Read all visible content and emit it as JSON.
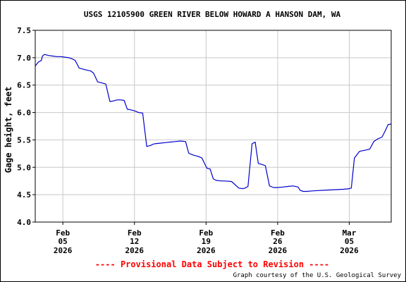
{
  "chart_data": {
    "type": "line",
    "title": "USGS 12105900 GREEN RIVER BELOW HOWARD A HANSON DAM, WA",
    "ylabel": "Gage height, feet",
    "xlabel": "",
    "ylim": [
      4.0,
      7.5
    ],
    "yticks": [
      "4.0",
      "4.5",
      "5.0",
      "5.5",
      "6.0",
      "6.5",
      "7.0",
      "7.5"
    ],
    "xlim_days": [
      2.3,
      37.1
    ],
    "x_ticks": [
      {
        "day": 5,
        "month": "Feb",
        "date": "05",
        "year": "2026"
      },
      {
        "day": 12,
        "month": "Feb",
        "date": "12",
        "year": "2026"
      },
      {
        "day": 19,
        "month": "Feb",
        "date": "19",
        "year": "2026"
      },
      {
        "day": 26,
        "month": "Feb",
        "date": "26",
        "year": "2026"
      },
      {
        "day": 33,
        "month": "Mar",
        "date": "05",
        "year": "2026"
      }
    ],
    "grid": true,
    "line_color": "#0000cc",
    "series": [
      {
        "x": [
          2.3,
          2.6,
          2.9,
          3.0,
          3.2,
          3.6,
          4.0,
          4.4,
          4.8,
          5.2,
          5.6,
          5.9,
          6.2,
          6.6,
          7.0,
          7.4,
          7.7,
          8.0,
          8.4,
          8.8,
          9.2,
          9.6,
          9.9,
          10.3,
          10.7,
          11.0,
          11.3,
          11.6,
          12.0,
          12.4,
          12.8,
          13.2,
          13.6,
          13.8,
          14.0,
          14.5,
          15.0,
          15.5,
          16.0,
          16.5,
          17.0,
          17.3,
          17.5,
          17.8,
          18.2,
          18.6,
          18.9,
          19.1,
          19.4,
          19.7,
          20.0,
          20.5,
          20.8,
          21.5,
          22.2,
          22.6,
          22.8,
          23.1,
          23.5,
          23.8,
          24.1,
          24.5,
          24.8,
          25.2,
          25.6,
          26.0,
          26.5,
          27.0,
          27.5,
          28.0,
          28.2,
          28.5,
          28.8,
          29.5,
          30.5,
          31.5,
          32.5,
          33.0,
          33.2,
          33.5,
          34.0,
          34.5,
          35.0,
          35.4,
          35.8,
          36.2,
          36.5,
          36.8,
          37.1
        ],
        "y": [
          6.85,
          6.92,
          6.95,
          7.03,
          7.06,
          7.04,
          7.03,
          7.02,
          7.02,
          7.01,
          7.0,
          6.98,
          6.95,
          6.81,
          6.79,
          6.77,
          6.76,
          6.72,
          6.56,
          6.54,
          6.52,
          6.2,
          6.21,
          6.23,
          6.23,
          6.22,
          6.06,
          6.05,
          6.03,
          6.0,
          5.99,
          5.38,
          5.4,
          5.42,
          5.43,
          5.44,
          5.45,
          5.46,
          5.47,
          5.48,
          5.47,
          5.26,
          5.24,
          5.22,
          5.2,
          5.17,
          5.05,
          4.98,
          4.97,
          4.79,
          4.76,
          4.75,
          4.75,
          4.74,
          4.62,
          4.61,
          4.62,
          4.65,
          5.43,
          5.46,
          5.07,
          5.05,
          5.03,
          4.66,
          4.63,
          4.63,
          4.64,
          4.65,
          4.66,
          4.64,
          4.58,
          4.56,
          4.56,
          4.57,
          4.58,
          4.59,
          4.6,
          4.61,
          4.62,
          5.17,
          5.29,
          5.31,
          5.33,
          5.47,
          5.52,
          5.55,
          5.66,
          5.78,
          5.79
        ]
      }
    ]
  },
  "footer": {
    "provisional": "---- Provisional Data Subject to Revision ----",
    "credit": "Graph courtesy of the U.S. Geological Survey"
  }
}
